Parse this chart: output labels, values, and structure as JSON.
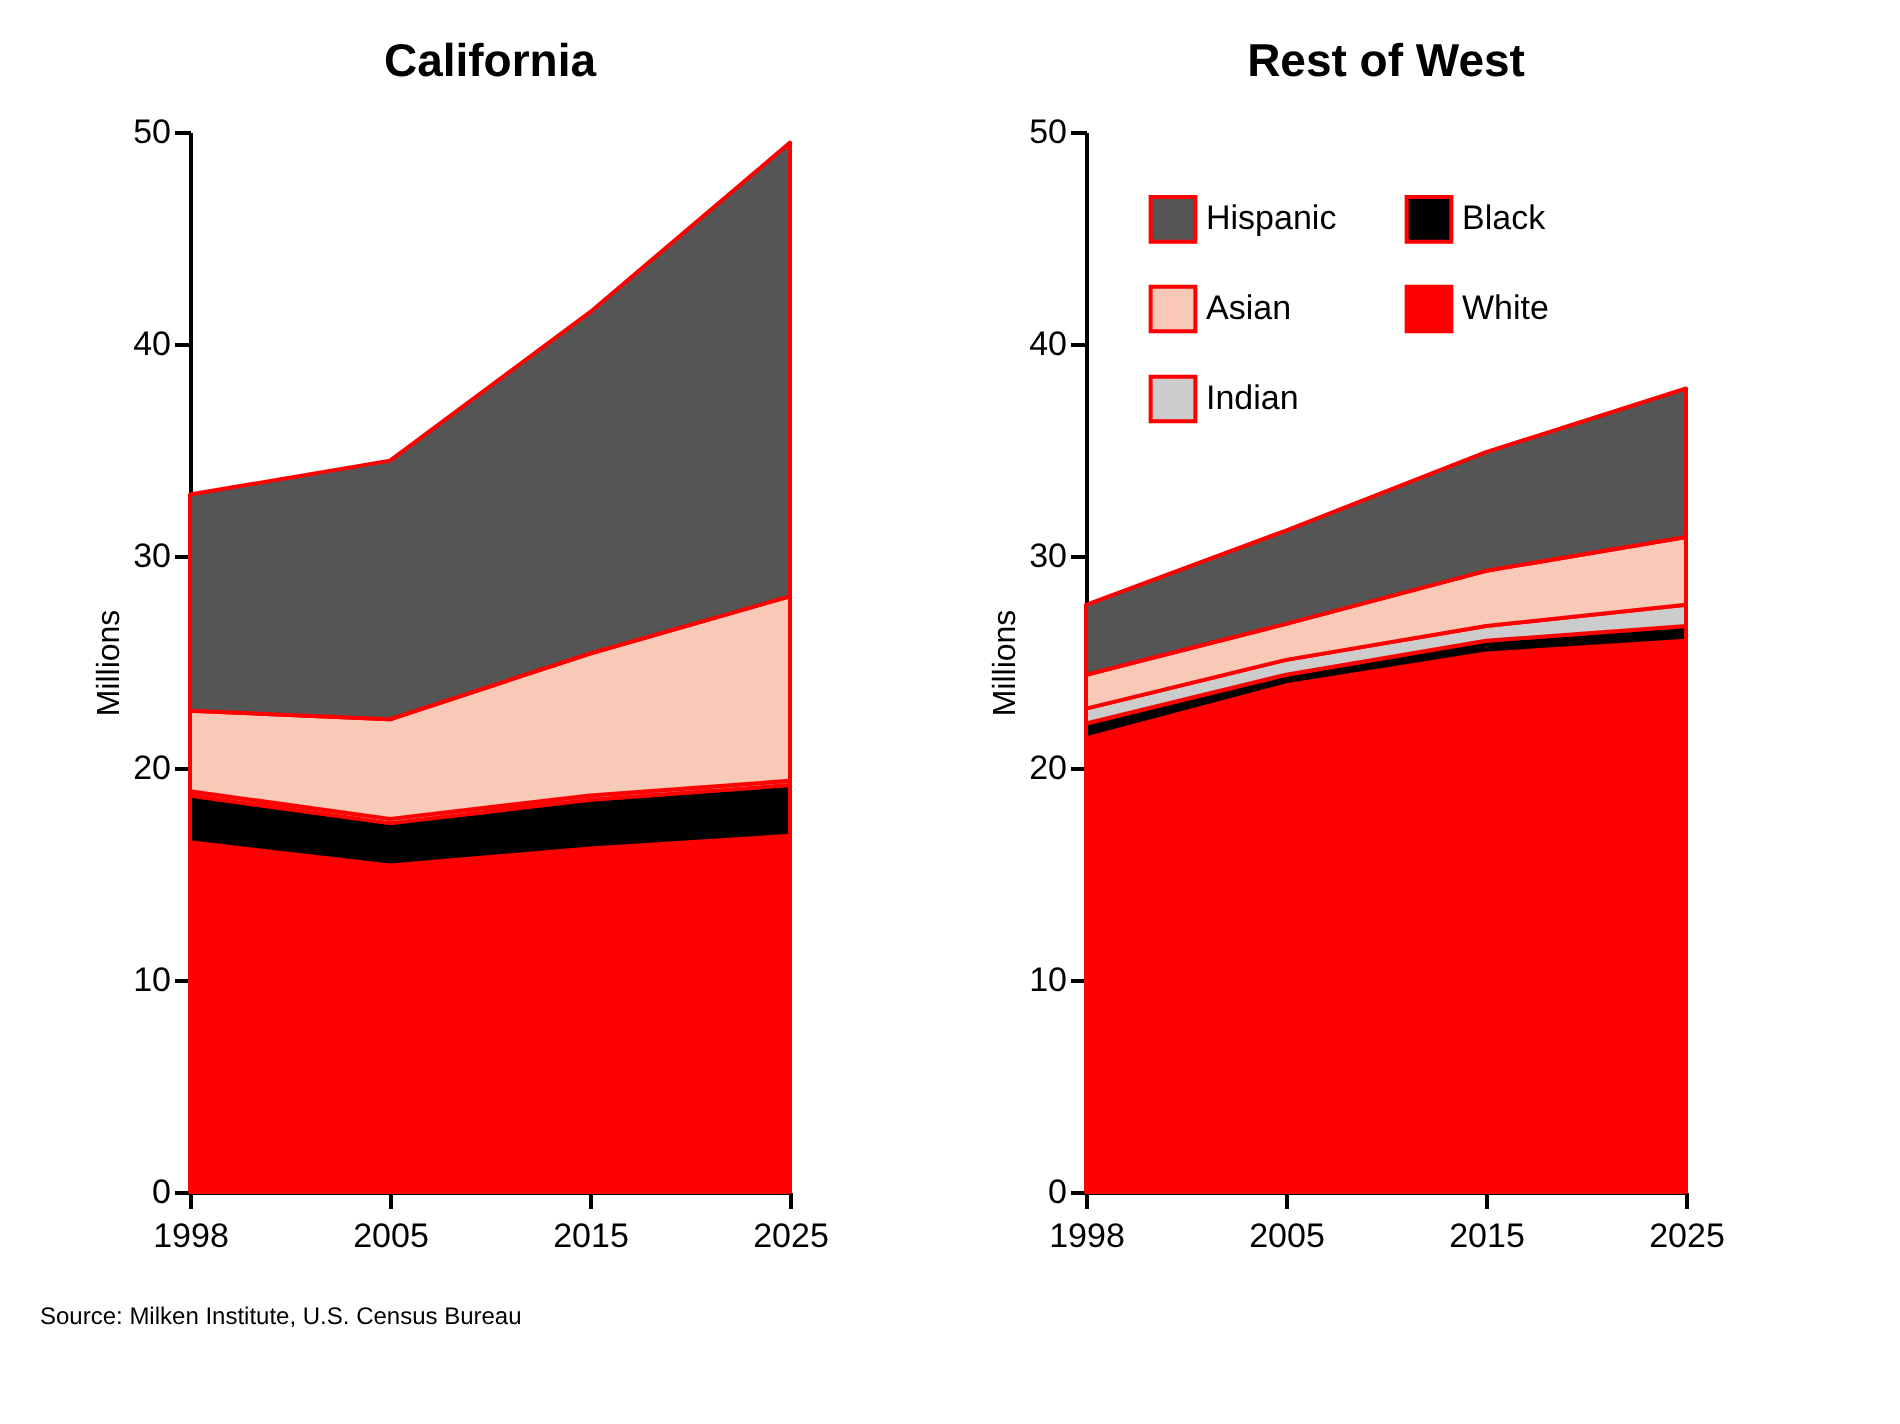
{
  "chart_data": [
    {
      "type": "area",
      "title": "California",
      "ylabel": "Millions",
      "categories": [
        "1998",
        "2005",
        "2015",
        "2025"
      ],
      "stacked": true,
      "ylim": [
        0,
        50
      ],
      "yticks": [
        0,
        10,
        20,
        30,
        40,
        50
      ],
      "grid": false,
      "legend": false,
      "annotations": [
        "Source: Milken Institute, U.S. Census Bureau"
      ],
      "series": [
        {
          "color": "#ff0000",
          "values": [
            16.5,
            15.4,
            16.2,
            16.8
          ]
        },
        {
          "color": "#000000",
          "values": [
            2.2,
            2.0,
            2.3,
            2.4
          ]
        },
        {
          "color": "#cccccc",
          "values": [
            0.2,
            0.2,
            0.2,
            0.2
          ]
        },
        {
          "color": "#f9c9b8",
          "values": [
            3.8,
            4.7,
            6.7,
            8.7
          ]
        },
        {
          "color": "#555555",
          "values": [
            10.2,
            12.2,
            16.1,
            21.4
          ]
        }
      ]
    },
    {
      "type": "area",
      "title": "Rest of West",
      "ylabel": "Millions",
      "categories": [
        "1998",
        "2005",
        "2015",
        "2025"
      ],
      "stacked": true,
      "ylim": [
        0,
        50
      ],
      "yticks": [
        0,
        10,
        20,
        30,
        40,
        50
      ],
      "grid": false,
      "legend": "top left",
      "series": [
        {
          "name": "White",
          "color": "#ff0000",
          "values": [
            21.4,
            23.9,
            25.4,
            26.0
          ]
        },
        {
          "name": "Black",
          "color": "#000000",
          "values": [
            0.7,
            0.5,
            0.6,
            0.7
          ]
        },
        {
          "name": "Indian",
          "color": "#cccccc",
          "values": [
            0.7,
            0.7,
            0.7,
            1.0
          ]
        },
        {
          "name": "Asian",
          "color": "#f9c9b8",
          "values": [
            1.6,
            1.7,
            2.6,
            3.2
          ]
        },
        {
          "name": "Hispanic",
          "color": "#555555",
          "values": [
            3.3,
            4.4,
            5.6,
            7.0
          ]
        }
      ]
    }
  ]
}
